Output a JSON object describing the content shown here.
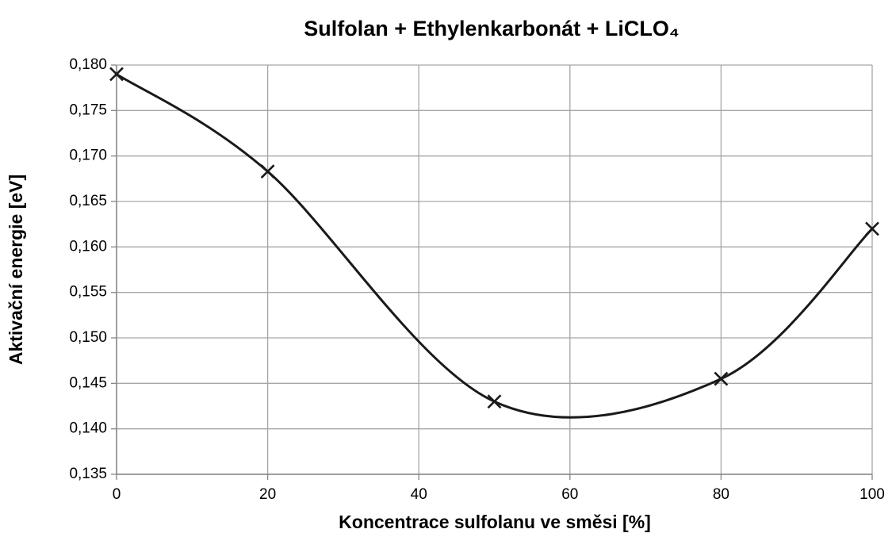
{
  "chart_data": {
    "type": "scatter-smooth",
    "title": "Sulfolan + Ethylenkarbonát + LiCLO₄",
    "xlabel": "Koncentrace sulfolanu ve směsi [%]",
    "ylabel": "Aktivační energie [eV]",
    "x": [
      0,
      20,
      50,
      80,
      100
    ],
    "values": [
      0.179,
      0.1683,
      0.143,
      0.1455,
      0.162
    ],
    "color": "#1a1a1a",
    "xlim": [
      0,
      100
    ],
    "xticks": [
      0,
      20,
      40,
      60,
      80,
      100
    ],
    "ylim": [
      0.135,
      0.18
    ],
    "yticks": [
      {
        "value": 0.135,
        "label": "0,135"
      },
      {
        "value": 0.14,
        "label": "0,140"
      },
      {
        "value": 0.145,
        "label": "0,145"
      },
      {
        "value": 0.15,
        "label": "0,150"
      },
      {
        "value": 0.155,
        "label": "0,155"
      },
      {
        "value": 0.16,
        "label": "0,160"
      },
      {
        "value": 0.165,
        "label": "0,165"
      },
      {
        "value": 0.17,
        "label": "0,170"
      },
      {
        "value": 0.175,
        "label": "0,175"
      },
      {
        "value": 0.18,
        "label": "0,180"
      }
    ],
    "grid": true
  }
}
